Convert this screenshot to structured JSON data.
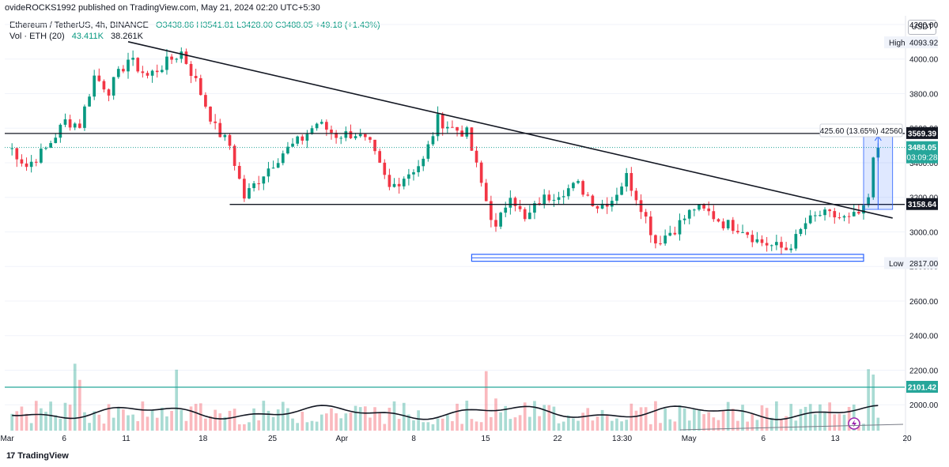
{
  "header": {
    "published": "ovideROCKS1992 published on TradingView.com, May 21, 2024 02:20 UTC+5:30",
    "symbol": "Ethereum / TetherUS, 4h, BINANCE",
    "ohlc": "O3438.86  H3541.81  L3428.00  C3488.05  +49.18 (+1.43%)",
    "volume_label": "Vol · ETH (20)",
    "volume_value": "43.411K",
    "volume_ma": "38.261K",
    "currency": "USDT"
  },
  "footer": {
    "brand": "TradingView"
  },
  "colors": {
    "up": "#089981",
    "down": "#f23645",
    "dotted_price": "#26a69a",
    "box": "#2962ff",
    "level_teal": "#26a69a"
  },
  "chart_data": {
    "type": "candlestick",
    "x_ticks": [
      "Mar",
      "6",
      "11",
      "18",
      "25",
      "Apr",
      "8",
      "15",
      "22",
      "13:30",
      "May",
      "6",
      "13",
      "20"
    ],
    "y_ticks": [
      2000,
      2200,
      2400,
      2600,
      2800,
      3000,
      3200,
      3400,
      3600,
      3800,
      4000,
      4200
    ],
    "ylim": [
      1850,
      4250
    ],
    "series_anchors": [
      [
        1,
        3480
      ],
      [
        4,
        3380
      ],
      [
        8,
        3480
      ],
      [
        12,
        3640
      ],
      [
        15,
        3620
      ],
      [
        18,
        3900
      ],
      [
        21,
        3820
      ],
      [
        25,
        4000
      ],
      [
        29,
        3900
      ],
      [
        33,
        3980
      ],
      [
        36,
        4040
      ],
      [
        39,
        3870
      ],
      [
        43,
        3600
      ],
      [
        46,
        3500
      ],
      [
        49,
        3200
      ],
      [
        53,
        3340
      ],
      [
        57,
        3460
      ],
      [
        61,
        3540
      ],
      [
        64,
        3630
      ],
      [
        68,
        3560
      ],
      [
        72,
        3570
      ],
      [
        75,
        3500
      ],
      [
        79,
        3250
      ],
      [
        82,
        3320
      ],
      [
        86,
        3410
      ],
      [
        89,
        3650
      ],
      [
        92,
        3600
      ],
      [
        95,
        3570
      ],
      [
        99,
        3180
      ],
      [
        101,
        3010
      ],
      [
        104,
        3230
      ],
      [
        107,
        3060
      ],
      [
        110,
        3180
      ],
      [
        114,
        3230
      ],
      [
        118,
        3270
      ],
      [
        122,
        3150
      ],
      [
        125,
        3190
      ],
      [
        128,
        3320
      ],
      [
        131,
        3150
      ],
      [
        134,
        2940
      ],
      [
        138,
        3020
      ],
      [
        142,
        3140
      ],
      [
        145,
        3110
      ],
      [
        148,
        3050
      ],
      [
        152,
        3020
      ],
      [
        155,
        2950
      ],
      [
        158,
        2920
      ],
      [
        161,
        2900
      ],
      [
        163,
        2960
      ],
      [
        165,
        3050
      ],
      [
        168,
        3100
      ],
      [
        171,
        3090
      ],
      [
        174,
        3070
      ],
      [
        177,
        3120
      ],
      [
        178,
        3200
      ],
      [
        179,
        3430
      ],
      [
        180,
        3488
      ]
    ],
    "levels": {
      "resistance": 3569.39,
      "support": 3158.64,
      "teal_line": 2101.42,
      "current": 3488.05
    },
    "badges": {
      "resistance": "3569.39",
      "support": "3158.64",
      "teal": "2101.42",
      "price": "3488.05",
      "countdown": "03:09:28",
      "high_label": "High",
      "high_value": "4093.92",
      "low_label": "Low",
      "low_value": "2817.00"
    },
    "measure": {
      "text": "425.60 (13.65%) 42560",
      "from": 3130,
      "to": 3555
    },
    "trendline": {
      "from": [
        25,
        4100
      ],
      "to": [
        183,
        3080
      ]
    },
    "support_box": {
      "from": [
        96,
        2830
      ],
      "to": [
        177,
        2870
      ]
    }
  }
}
